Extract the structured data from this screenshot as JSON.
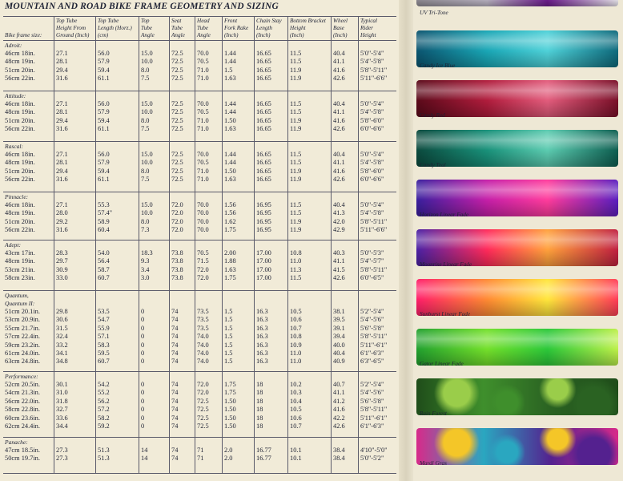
{
  "title": "MOUNTAIN AND ROAD BIKE FRAME GEOMETRY AND SIZING",
  "headers": [
    "Bike frame size:",
    "Top Tube\nHeight From\nGround (Inch)",
    "Top Tube\nLength (Horz.)\n(cm)",
    "Top\nTube\nAngle",
    "Seat\nTube\nAngle",
    "Head\nTube\nAngle",
    "Front\nFork Rake\n(Inch)",
    "Chain Stay\nLength\n(Inch)",
    "Bottom Bracket\nHeight\n(Inch)",
    "Wheel\nBase\n(Inch)",
    "Typical\nRider\nHeight"
  ],
  "groups": [
    {
      "name": "Adroit:",
      "sizes": [
        "46cm 18in.",
        "48cm 19in.",
        "51cm 20in.",
        "56cm 22in."
      ],
      "cols": [
        [
          "27.1",
          "28.1",
          "29.4",
          "31.6"
        ],
        [
          "56.0",
          "57.9",
          "59.4",
          "61.1"
        ],
        [
          "15.0",
          "10.0",
          "8.0",
          "7.5"
        ],
        [
          "72.5",
          "72.5",
          "72.5",
          "72.5"
        ],
        [
          "70.0",
          "70.5",
          "71.0",
          "71.0"
        ],
        [
          "1.44",
          "1.44",
          "1.5",
          "1.63"
        ],
        [
          "16.65",
          "16.65",
          "16.65",
          "16.65"
        ],
        [
          "11.5",
          "11.5",
          "11.9",
          "11.9"
        ],
        [
          "40.4",
          "41.1",
          "41.6",
          "42.6"
        ],
        [
          "5'0\"-5'4\"",
          "5'4\"-5'8\"",
          "5'8\"-5'11\"",
          "5'11\"-6'6\""
        ]
      ]
    },
    {
      "name": "Attitude:",
      "sizes": [
        "46cm 18in.",
        "48cm 19in.",
        "51cm 20in.",
        "56cm 22in."
      ],
      "cols": [
        [
          "27.1",
          "28.1",
          "29.4",
          "31.6"
        ],
        [
          "56.0",
          "57.9",
          "59.4",
          "61.1"
        ],
        [
          "15.0",
          "10.0",
          "8.0",
          "7.5"
        ],
        [
          "72.5",
          "72.5",
          "72.5",
          "72.5"
        ],
        [
          "70.0",
          "70.5",
          "71.0",
          "71.0"
        ],
        [
          "1.44",
          "1.44",
          "1.50",
          "1.63"
        ],
        [
          "16.65",
          "16.65",
          "16.65",
          "16.65"
        ],
        [
          "11.5",
          "11.5",
          "11.9",
          "11.9"
        ],
        [
          "40.4",
          "41.1",
          "41.6",
          "42.6"
        ],
        [
          "5'0\"-5'4\"",
          "5'4\"-5'8\"",
          "5'8\"-6'0\"",
          "6'0\"-6'6\""
        ]
      ]
    },
    {
      "name": "Rascal:",
      "sizes": [
        "46cm 18in.",
        "48cm 19in.",
        "51cm 20in.",
        "56cm 22in."
      ],
      "cols": [
        [
          "27.1",
          "28.1",
          "29.4",
          "31.6"
        ],
        [
          "56.0",
          "57.9",
          "59.4",
          "61.1"
        ],
        [
          "15.0",
          "10.0",
          "8.0",
          "7.5"
        ],
        [
          "72.5",
          "72.5",
          "72.5",
          "72.5"
        ],
        [
          "70.0",
          "70.5",
          "71.0",
          "71.0"
        ],
        [
          "1.44",
          "1.44",
          "1.50",
          "1.63"
        ],
        [
          "16.65",
          "16.65",
          "16.65",
          "16.65"
        ],
        [
          "11.5",
          "11.5",
          "11.9",
          "11.9"
        ],
        [
          "40.4",
          "41.1",
          "41.6",
          "42.6"
        ],
        [
          "5'0\"-5'4\"",
          "5'4\"-5'8\"",
          "5'8\"-6'0\"",
          "6'0\"-6'6\""
        ]
      ]
    },
    {
      "name": "Pinnacle:",
      "sizes": [
        "46cm 18in.",
        "48cm 19in.",
        "51cm 20in.",
        "56cm 22in."
      ],
      "cols": [
        [
          "27.1",
          "28.0",
          "29.2",
          "31.6"
        ],
        [
          "55.3",
          "57.4\"",
          "58.9",
          "60.4"
        ],
        [
          "15.0",
          "10.0",
          "8.0",
          "7.3"
        ],
        [
          "72.0",
          "72.0",
          "72.0",
          "72.0"
        ],
        [
          "70.0",
          "70.0",
          "70.0",
          "70.0"
        ],
        [
          "1.56",
          "1.56",
          "1.62",
          "1.75"
        ],
        [
          "16.95",
          "16.95",
          "16.95",
          "16.95"
        ],
        [
          "11.5",
          "11.5",
          "11.9",
          "11.9"
        ],
        [
          "40.4",
          "41.3",
          "42.0",
          "42.9"
        ],
        [
          "5'0\"-5'4\"",
          "5'4\"-5'8\"",
          "5'8\"-5'11\"",
          "5'11\"-6'6\""
        ]
      ]
    },
    {
      "name": "Adept:",
      "sizes": [
        "43cm 17in.",
        "48cm 19in.",
        "53cm 21in.",
        "58cm 23in."
      ],
      "cols": [
        [
          "28.3",
          "29.7",
          "30.9",
          "33.0"
        ],
        [
          "54.0",
          "56.4",
          "58.7",
          "60.7"
        ],
        [
          "18.3",
          "9.3",
          "3.4",
          "3.0"
        ],
        [
          "73.8",
          "73.8",
          "73.8",
          "73.8"
        ],
        [
          "70.5",
          "71.5",
          "72.0",
          "72.0"
        ],
        [
          "2.00",
          "1.88",
          "1.63",
          "1.75"
        ],
        [
          "17.00",
          "17.00",
          "17.00",
          "17.00"
        ],
        [
          "10.8",
          "11.0",
          "11.3",
          "11.5"
        ],
        [
          "40.3",
          "41.1",
          "41.5",
          "42.6"
        ],
        [
          "5'0\"-5'3\"",
          "5'4\"-5'7\"",
          "5'8\"-5'11\"",
          "6'0\"-6'5\""
        ]
      ]
    },
    {
      "name": "Quantum,\nQuantum II:",
      "sizes": [
        "51cm 20.1in.",
        "53cm 20.9in.",
        "55cm 21.7in.",
        "57cm 22.4in.",
        "59cm 23.2in.",
        "61cm 24.0in.",
        "63cm 24.8in."
      ],
      "cols": [
        [
          "29.8",
          "30.6",
          "31.5",
          "32.4",
          "33.2",
          "34.1",
          "34.8"
        ],
        [
          "53.5",
          "54.7",
          "55.9",
          "57.1",
          "58.3",
          "59.5",
          "60.7"
        ],
        [
          "0",
          "0",
          "0",
          "0",
          "0",
          "0",
          "0"
        ],
        [
          "74",
          "74",
          "74",
          "74",
          "74",
          "74",
          "74"
        ],
        [
          "73.5",
          "73.5",
          "73.5",
          "74.0",
          "74.0",
          "74.0",
          "74.0"
        ],
        [
          "1.5",
          "1.5",
          "1.5",
          "1.5",
          "1.5",
          "1.5",
          "1.5"
        ],
        [
          "16.3",
          "16.3",
          "16.3",
          "16.3",
          "16.3",
          "16.3",
          "16.3"
        ],
        [
          "10.5",
          "10.6",
          "10.7",
          "10.8",
          "10.9",
          "11.0",
          "11.0"
        ],
        [
          "38.1",
          "39.5",
          "39.1",
          "39.4",
          "40.0",
          "40.4",
          "40.9"
        ],
        [
          "5'2\"-5'4\"",
          "5'4\"-5'6\"",
          "5'6\"-5'8\"",
          "5'8\"-5'11\"",
          "5'11\"-6'1\"",
          "6'1\"-6'3\"",
          "6'3\"-6'5\""
        ]
      ]
    },
    {
      "name": "Performance:",
      "sizes": [
        "52cm 20.5in.",
        "54cm 21.3in.",
        "56cm 22.0in.",
        "58cm 22.8in.",
        "60cm 23.6in.",
        "62cm 24.4in."
      ],
      "cols": [
        [
          "30.1",
          "31.0",
          "31.8",
          "32.7",
          "33.6",
          "34.4"
        ],
        [
          "54.2",
          "55.2",
          "56.2",
          "57.2",
          "58.2",
          "59.2"
        ],
        [
          "0",
          "0",
          "0",
          "0",
          "0",
          "0"
        ],
        [
          "74",
          "74",
          "74",
          "74",
          "74",
          "74"
        ],
        [
          "72.0",
          "72.0",
          "72.5",
          "72.5",
          "72.5",
          "72.5"
        ],
        [
          "1.75",
          "1.75",
          "1.50",
          "1.50",
          "1.50",
          "1.50"
        ],
        [
          "18",
          "18",
          "18",
          "18",
          "18",
          "18"
        ],
        [
          "10.2",
          "10.3",
          "10.4",
          "10.5",
          "10.6",
          "10.7"
        ],
        [
          "40.7",
          "41.1",
          "41.2",
          "41.6",
          "42.2",
          "42.6"
        ],
        [
          "5'2\"-5'4\"",
          "5'4\"-5'6\"",
          "5'6\"-5'8\"",
          "5'8\"-5'11\"",
          "5'11\"-6'1\"",
          "6'1\"-6'3\""
        ]
      ]
    },
    {
      "name": "Panache:",
      "sizes": [
        "47cm 18.5in.",
        "50cm 19.7in."
      ],
      "cols": [
        [
          "27.3",
          "27.3"
        ],
        [
          "51.3",
          "51.3"
        ],
        [
          "14",
          "14"
        ],
        [
          "74",
          "74"
        ],
        [
          "71",
          "71"
        ],
        [
          "2.0",
          "2.0"
        ],
        [
          "16.77",
          "16.77"
        ],
        [
          "10.1",
          "10.1"
        ],
        [
          "38.4",
          "38.4"
        ],
        [
          "4'10\"-5'0\"",
          "5'0\"-5'2\""
        ]
      ]
    }
  ],
  "swatches": [
    {
      "label": "UV Tri-Tone",
      "colors": [
        "#8e8a92",
        "#b7b0bf",
        "#6c1b8c",
        "#e6e3ea"
      ]
    },
    {
      "label": "Candy Ice Blue",
      "colors": [
        "#0b5570",
        "#19a6b5",
        "#4fd1d8",
        "#0e6a7c"
      ]
    },
    {
      "label": "Candy Red",
      "colors": [
        "#5b0a1a",
        "#b01c3c",
        "#e25c7c",
        "#7a0f28"
      ]
    },
    {
      "label": "Candy Teal",
      "colors": [
        "#0b4a3e",
        "#19917a",
        "#5ccbb0",
        "#0d5e50"
      ]
    },
    {
      "label": "Horizon Linear Fade",
      "colors": [
        "#3a1f9e",
        "#c51fa8",
        "#ff3c9c",
        "#5a1ebe"
      ]
    },
    {
      "label": "Moonrise Linear Fade",
      "colors": [
        "#4b21a4",
        "#ff2a5a",
        "#ffa13c",
        "#c02040"
      ]
    },
    {
      "label": "Sunburst Linear Fade",
      "colors": [
        "#ff1f6a",
        "#ff8a33",
        "#ffe63c",
        "#ff3c58"
      ]
    },
    {
      "label": "Gator Linear Fade",
      "colors": [
        "#22a12f",
        "#74e02b",
        "#2cc83a",
        "#bdf04a"
      ]
    },
    {
      "label": "Rain Forest",
      "colors": [
        "#1f4d1a",
        "#3f8f2c",
        "#9acd4a",
        "#2a6222"
      ]
    },
    {
      "label": "Mardi Gras",
      "colors": [
        "#d72a8a",
        "#2aa7c0",
        "#f4c628",
        "#54218f"
      ]
    }
  ]
}
